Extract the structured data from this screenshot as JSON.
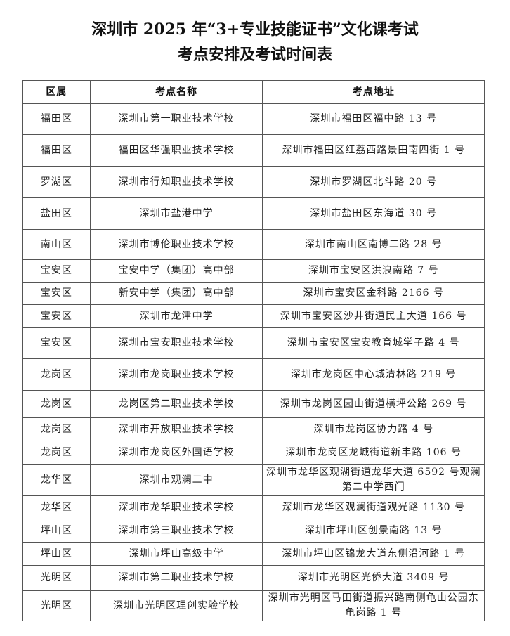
{
  "title_line1": "深圳市 2025 年“3+专业技能证书”文化课考试",
  "title_line2": "考点安排及考试时间表",
  "table": {
    "headers": [
      "区属",
      "考点名称",
      "考点地址"
    ],
    "rows": [
      [
        "福田区",
        "深圳市第一职业技术学校",
        "深圳市福田区福中路 13 号"
      ],
      [
        "福田区",
        "福田区华强职业技术学校",
        "深圳市福田区红荔西路景田南四街 1 号"
      ],
      [
        "罗湖区",
        "深圳市行知职业技术学校",
        "深圳市罗湖区北斗路 20 号"
      ],
      [
        "盐田区",
        "深圳市盐港中学",
        "深圳市盐田区东海道 30 号"
      ],
      [
        "南山区",
        "深圳市博伦职业技术学校",
        "深圳市南山区南博二路 28 号"
      ],
      [
        "宝安区",
        "宝安中学（集团）高中部",
        "深圳市宝安区洪浪南路 7 号"
      ],
      [
        "宝安区",
        "新安中学（集团）高中部",
        "深圳市宝安区金科路 2166 号"
      ],
      [
        "宝安区",
        "深圳市龙津中学",
        "深圳市宝安区沙井街道民主大道 166 号"
      ],
      [
        "宝安区",
        "深圳市宝安职业技术学校",
        "深圳市宝安区宝安教育城学子路 4 号"
      ],
      [
        "龙岗区",
        "深圳市龙岗职业技术学校",
        "深圳市龙岗区中心城清林路 219 号"
      ],
      [
        "龙岗区",
        "龙岗区第二职业技术学校",
        "深圳市龙岗区园山街道横坪公路 269 号"
      ],
      [
        "龙岗区",
        "深圳市开放职业技术学校",
        "深圳市龙岗区协力路 4 号"
      ],
      [
        "龙岗区",
        "深圳市龙岗区外国语学校",
        "深圳市龙岗区龙城街道新丰路 106 号"
      ],
      [
        "龙华区",
        "深圳市观澜二中",
        "深圳市龙华区观湖街道龙华大道 6592 号观澜第二中学西门"
      ],
      [
        "龙华区",
        "深圳市龙华职业技术学校",
        "深圳市龙华区观澜街道观光路 1130 号"
      ],
      [
        "坪山区",
        "深圳市第三职业技术学校",
        "深圳市坪山区创景南路 13 号"
      ],
      [
        "坪山区",
        "深圳市坪山高级中学",
        "深圳市坪山区锦龙大道东侧沿河路 1 号"
      ],
      [
        "光明区",
        "深圳市第二职业技术学校",
        "深圳市光明区光侨大道 3409 号"
      ],
      [
        "光明区",
        "深圳市光明区理创实验学校",
        "深圳市光明区马田街道振兴路南侧龟山公园东龟岗路 1 号"
      ]
    ]
  }
}
